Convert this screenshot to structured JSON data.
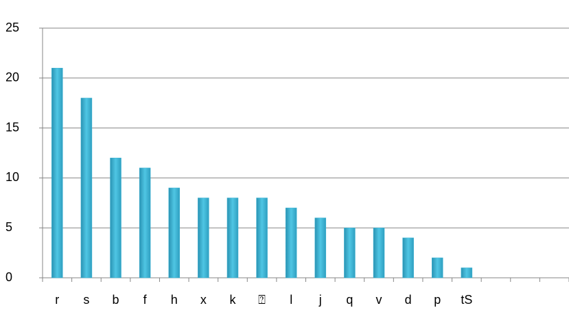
{
  "chart_data": {
    "type": "bar",
    "categories": [
      "r",
      "s",
      "b",
      "f",
      "h",
      "x",
      "k",
      "⍰",
      "l",
      "j",
      "q",
      "v",
      "d",
      "p",
      "tS",
      null,
      null,
      null
    ],
    "values": [
      21,
      18,
      12,
      11,
      9,
      8,
      8,
      8,
      7,
      6,
      5,
      5,
      4,
      2,
      1,
      null,
      null,
      null
    ],
    "color": "#3bb3d4",
    "ylim": [
      0,
      25
    ],
    "yticks": [
      0,
      5,
      10,
      15,
      20,
      25
    ],
    "grid": true
  }
}
